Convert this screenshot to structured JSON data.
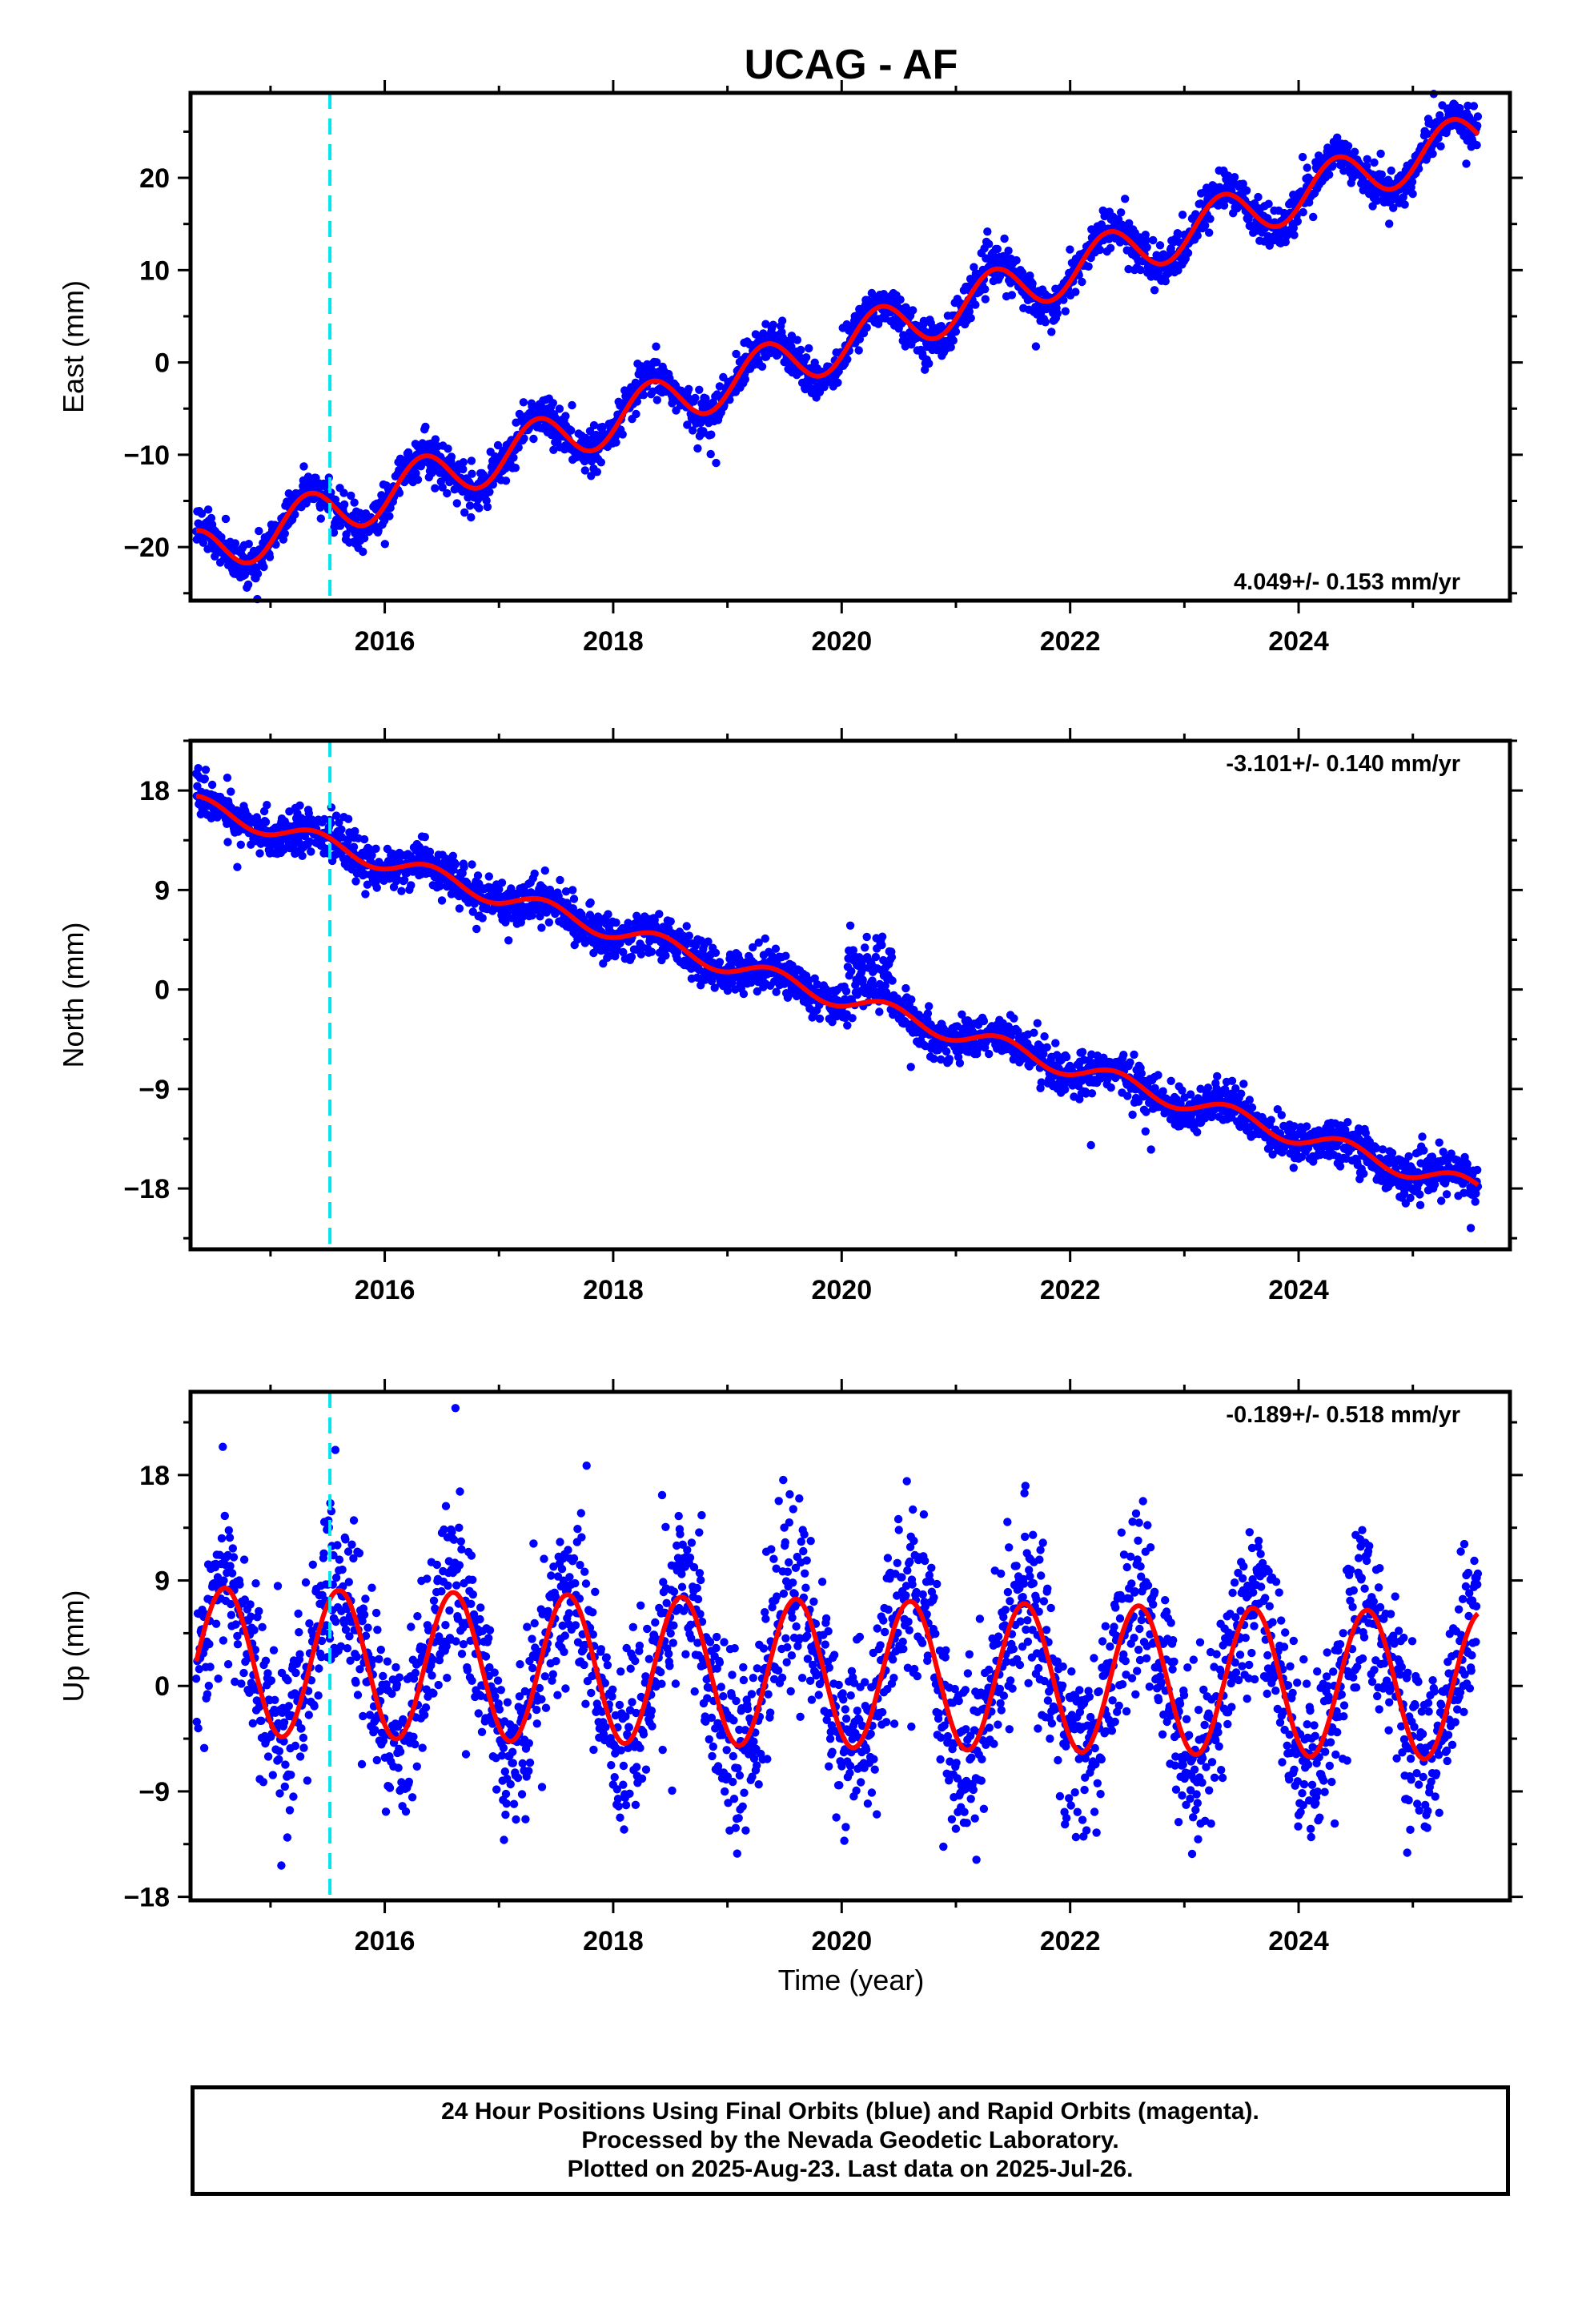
{
  "title": "UCAG - AF",
  "colors": {
    "points": "#0000ff",
    "model": "#ff0000",
    "event_line": "#00e5ee",
    "frame": "#000000"
  },
  "xlabel": "Time (year)",
  "x_ticks": [
    2016,
    2018,
    2020,
    2022,
    2024
  ],
  "x_range": [
    2014.3,
    2025.85
  ],
  "event_year": 2015.52,
  "footer": {
    "line1": "24 Hour Positions Using Final Orbits (blue) and Rapid Orbits (magenta).",
    "line2": "Processed by the Nevada Geodetic Laboratory.",
    "line3": "Plotted on 2025-Aug-23. Last data on 2025-Jul-26."
  },
  "chart_data": [
    {
      "type": "scatter",
      "ylabel": "East (mm)",
      "rate_label": "4.049+/- 0.153 mm/yr",
      "rate_position": "bottom-right",
      "yticks": [
        -20,
        -10,
        0,
        10,
        20
      ],
      "ytick_labels": [
        "−20",
        "−10",
        "0",
        "10",
        "20"
      ],
      "ylim": [
        -25.8,
        29.2
      ],
      "data_range_x": [
        2014.35,
        2025.57
      ],
      "series": [
        {
          "kind": "daily-positions",
          "trend": {
            "intercept_at_2014_35": -20.9,
            "rate_mm_per_yr": 4.049
          },
          "annual_amplitude": 3.0,
          "annual_phase_peak_fraction": 0.33,
          "scatter_sd": 1.1
        }
      ],
      "model_curve": {
        "intercept_at_2014_35": -20.9,
        "rate_mm_per_yr": 4.049,
        "annual_amplitude": 2.7,
        "annual_phase_peak_fraction": 0.33
      }
    },
    {
      "type": "scatter",
      "ylabel": "North (mm)",
      "rate_label": "-3.101+/- 0.140 mm/yr",
      "rate_position": "top-right",
      "yticks": [
        -18,
        -9,
        0,
        9,
        18
      ],
      "ytick_labels": [
        "−18",
        "−9",
        "0",
        "9",
        "18"
      ],
      "ylim": [
        -23.5,
        22.5
      ],
      "data_range_x": [
        2014.35,
        2025.57
      ],
      "series": [
        {
          "kind": "daily-positions",
          "trend": {
            "intercept_at_2014_35": 16.7,
            "rate_mm_per_yr": -3.101
          },
          "annual_amplitude": 0.9,
          "annual_phase_peak_fraction": 0.4,
          "scatter_sd": 0.95,
          "anomaly": {
            "x_start": 2020.05,
            "x_end": 2020.45,
            "offset_max": 6.0
          }
        }
      ],
      "model_curve": {
        "intercept_at_2014_35": 16.7,
        "rate_mm_per_yr": -3.101,
        "annual_amplitude": 0.85,
        "annual_phase_peak_fraction": 0.4
      }
    },
    {
      "type": "scatter",
      "ylabel": "Up (mm)",
      "rate_label": "-0.189+/- 0.518 mm/yr",
      "rate_position": "top-right",
      "yticks": [
        -18,
        -9,
        0,
        9,
        18
      ],
      "ytick_labels": [
        "−18",
        "−9",
        "0",
        "9",
        "18"
      ],
      "ylim": [
        -18.3,
        25.1
      ],
      "data_range_x": [
        2014.35,
        2025.57
      ],
      "series": [
        {
          "kind": "daily-positions",
          "trend": {
            "intercept_at_2014_35": 2.1,
            "rate_mm_per_yr": -0.189
          },
          "annual_amplitude": 6.5,
          "annual_phase_peak_fraction": 0.6,
          "scatter_sd": 3.6
        }
      ],
      "model_curve": {
        "intercept_at_2014_35": 2.1,
        "rate_mm_per_yr": -0.189,
        "annual_amplitude": 6.3,
        "annual_phase_peak_fraction": 0.6
      }
    }
  ]
}
